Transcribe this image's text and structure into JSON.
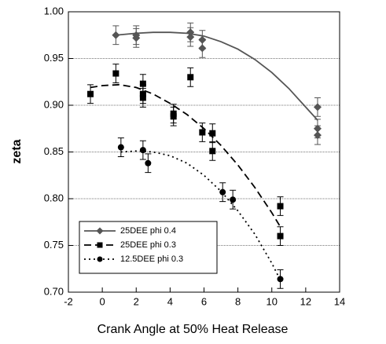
{
  "chart_data": {
    "type": "scatter",
    "xlabel": "Crank Angle at 50% Heat Release",
    "ylabel": "zeta",
    "xlim": [
      -2,
      14
    ],
    "xticks": [
      -2,
      0,
      2,
      4,
      6,
      8,
      10,
      12,
      14
    ],
    "ylim": [
      0.7,
      1.0
    ],
    "yticks": [
      {
        "value": 0.7,
        "label": "0.70"
      },
      0.75,
      {
        "value": 0.8,
        "label": "0.80"
      },
      0.85,
      {
        "value": 0.9,
        "label": "0.90"
      },
      0.95,
      {
        "value": 1.0,
        "label": "1.00"
      }
    ],
    "grid": true,
    "legend": "lower left",
    "series": [
      {
        "name": "25DEE phi 0.4",
        "color": "#555555",
        "marker": "diamond",
        "dash": "solid",
        "x": [
          0.8,
          2.0,
          2.0,
          5.2,
          5.2,
          5.9,
          5.9,
          12.7,
          12.7,
          12.7
        ],
        "values": [
          0.975,
          0.975,
          0.972,
          0.978,
          0.973,
          0.97,
          0.961,
          0.898,
          0.875,
          0.868
        ],
        "errors": [
          0.01,
          0.01,
          0.01,
          0.01,
          0.01,
          0.01,
          0.01,
          0.01,
          0.01,
          0.01
        ],
        "fit": {
          "x": [
            0.8,
            2,
            3,
            4,
            5,
            6,
            7,
            8,
            9,
            10,
            11,
            12,
            12.7
          ],
          "y": [
            0.975,
            0.977,
            0.978,
            0.978,
            0.977,
            0.974,
            0.968,
            0.96,
            0.949,
            0.935,
            0.918,
            0.898,
            0.884
          ]
        }
      },
      {
        "name": "25DEE phi 0.3",
        "color": "#000000",
        "marker": "square",
        "dash": "dashed",
        "x": [
          -0.7,
          0.8,
          2.4,
          2.4,
          2.4,
          4.2,
          4.2,
          5.2,
          5.9,
          6.5,
          6.5,
          10.5,
          10.5
        ],
        "values": [
          0.912,
          0.934,
          0.923,
          0.912,
          0.908,
          0.891,
          0.888,
          0.93,
          0.871,
          0.87,
          0.851,
          0.792,
          0.76
        ],
        "errors": [
          0.01,
          0.01,
          0.01,
          0.01,
          0.01,
          0.01,
          0.01,
          0.01,
          0.01,
          0.01,
          0.01,
          0.01,
          0.01
        ],
        "fit": {
          "x": [
            -0.7,
            0,
            1,
            2,
            3,
            4,
            5,
            6,
            7,
            8,
            9,
            10,
            10.5
          ],
          "y": [
            0.919,
            0.921,
            0.922,
            0.919,
            0.912,
            0.902,
            0.89,
            0.875,
            0.857,
            0.836,
            0.812,
            0.785,
            0.77
          ]
        }
      },
      {
        "name": "12.5DEE phi 0.3",
        "color": "#000000",
        "marker": "circle",
        "dash": "dotted",
        "x": [
          1.1,
          2.4,
          2.7,
          7.1,
          7.7,
          10.5
        ],
        "values": [
          0.855,
          0.852,
          0.838,
          0.807,
          0.799,
          0.714
        ],
        "errors": [
          0.01,
          0.01,
          0.01,
          0.01,
          0.01,
          0.01
        ],
        "fit": {
          "x": [
            1.1,
            2,
            3,
            4,
            5,
            6,
            7,
            8,
            9,
            10,
            10.5
          ],
          "y": [
            0.85,
            0.851,
            0.85,
            0.846,
            0.838,
            0.825,
            0.808,
            0.787,
            0.762,
            0.731,
            0.713
          ]
        }
      }
    ]
  }
}
